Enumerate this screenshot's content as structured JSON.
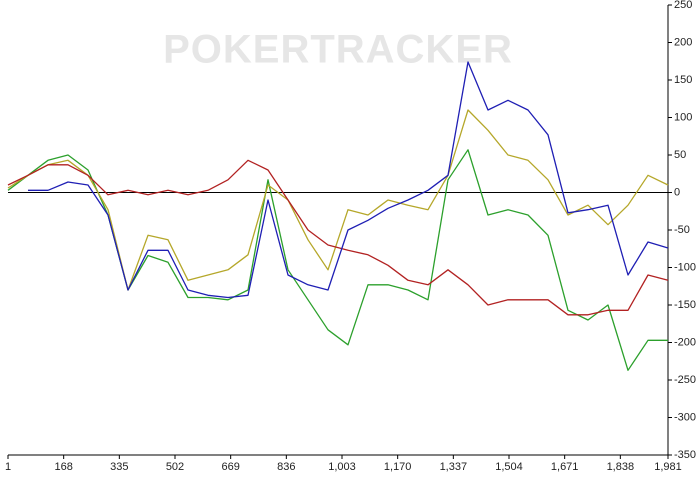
{
  "chart_data": {
    "type": "line",
    "watermark": "POKERTRACKER",
    "x": [
      1,
      61,
      121,
      181,
      241,
      301,
      361,
      421,
      481,
      541,
      601,
      661,
      721,
      781,
      841,
      901,
      961,
      1021,
      1081,
      1141,
      1201,
      1261,
      1321,
      1381,
      1441,
      1501,
      1561,
      1621,
      1681,
      1741,
      1801,
      1861,
      1921,
      1981
    ],
    "series": [
      {
        "color": "#2ca02c",
        "values": [
          3,
          23,
          43,
          50,
          30,
          -30,
          -130,
          -84,
          -93,
          -140,
          -140,
          -143,
          -130,
          17,
          -103,
          -143,
          -183,
          -203,
          -123,
          -123,
          -130,
          -143,
          17,
          57,
          -30,
          -23,
          -30,
          -57,
          -157,
          -170,
          -150,
          -237,
          -197,
          -197
        ]
      },
      {
        "color": "#b5a72a",
        "values": [
          6,
          23,
          37,
          43,
          23,
          -23,
          -130,
          -57,
          -63,
          -117,
          -110,
          -103,
          -83,
          10,
          -10,
          -63,
          -103,
          -23,
          -30,
          -10,
          -17,
          -23,
          23,
          110,
          83,
          50,
          43,
          17,
          -30,
          -17,
          -43,
          -17,
          23,
          10
        ]
      },
      {
        "color": "#b22222",
        "values": [
          10,
          23,
          37,
          37,
          23,
          -3,
          3,
          -3,
          3,
          -3,
          3,
          17,
          43,
          30,
          -10,
          -50,
          -70,
          -77,
          -83,
          -97,
          -117,
          -123,
          -103,
          -123,
          -150,
          -143,
          -143,
          -143,
          -163,
          -163,
          -157,
          -157,
          -110,
          -117
        ]
      },
      {
        "color": "#1f1fb4",
        "values": [
          null,
          3,
          3,
          14,
          10,
          -30,
          -130,
          -77,
          -77,
          -130,
          -137,
          -140,
          -137,
          -10,
          -110,
          -123,
          -130,
          -50,
          -37,
          -21,
          -10,
          3,
          23,
          174,
          110,
          123,
          110,
          77,
          -27,
          -23,
          -17,
          -110,
          -66,
          -74
        ]
      }
    ],
    "xlim": [
      1,
      1981
    ],
    "xticks": [
      1,
      168,
      335,
      502,
      669,
      836,
      {
        "value": 1003,
        "label": "1,003"
      },
      {
        "value": 1170,
        "label": "1,170"
      },
      {
        "value": 1337,
        "label": "1,337"
      },
      {
        "value": 1504,
        "label": "1,504"
      },
      {
        "value": 1671,
        "label": "1,671"
      },
      {
        "value": 1838,
        "label": "1,838"
      },
      {
        "value": 1981,
        "label": "1,981"
      }
    ],
    "ylim": [
      -350,
      250
    ],
    "yticks": [
      -350,
      -300,
      -250,
      -200,
      -150,
      -100,
      -50,
      0,
      50,
      100,
      150,
      200,
      250
    ],
    "y_axis_side": "right",
    "zero_line": true,
    "grid": false
  }
}
